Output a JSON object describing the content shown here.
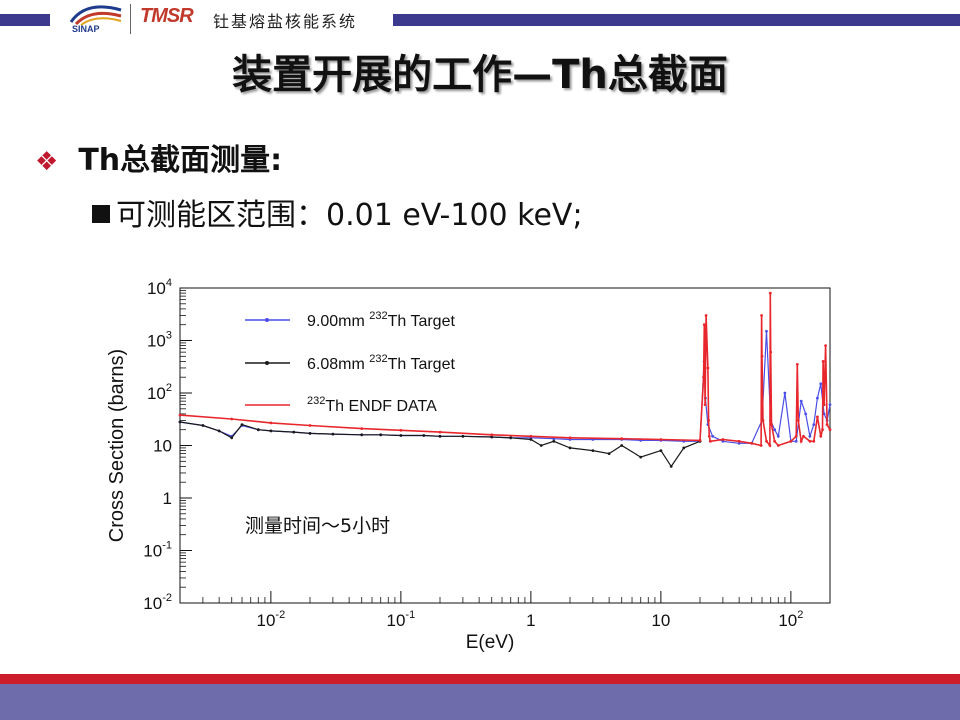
{
  "header": {
    "org_logo_text": "SINAP",
    "brand_logo_text": "TMSR",
    "system_name": "钍基熔盐核能系统",
    "colors": {
      "bar": "#3c3a8f",
      "brand": "#c0392b"
    }
  },
  "slide": {
    "title": "装置开展的工作—Th总截面",
    "bullets": [
      {
        "icon": "diamond-bullet-icon",
        "text": "Th总截面测量:"
      },
      {
        "icon": "square-bullet-icon",
        "text": "可测能区范围：0.01 eV-100 keV;"
      }
    ]
  },
  "chart_data": {
    "type": "line",
    "xlabel": "E(eV)",
    "ylabel": "Cross Section (barns)",
    "xscale": "log",
    "yscale": "log",
    "xlim": [
      0.002,
      200
    ],
    "ylim": [
      0.01,
      10000
    ],
    "x_ticks": [
      {
        "value": 0.01,
        "base": "10",
        "exp": "-2"
      },
      {
        "value": 0.1,
        "base": "10",
        "exp": "-1"
      },
      {
        "value": 1,
        "base": "1",
        "exp": ""
      },
      {
        "value": 10,
        "base": "10",
        "exp": ""
      },
      {
        "value": 100,
        "base": "10",
        "exp": "2"
      }
    ],
    "y_ticks": [
      {
        "value": 0.01,
        "base": "10",
        "exp": "-2"
      },
      {
        "value": 0.1,
        "base": "10",
        "exp": "-1"
      },
      {
        "value": 1,
        "base": "1",
        "exp": ""
      },
      {
        "value": 10,
        "base": "10",
        "exp": ""
      },
      {
        "value": 100,
        "base": "10",
        "exp": "2"
      },
      {
        "value": 1000,
        "base": "10",
        "exp": "3"
      },
      {
        "value": 10000,
        "base": "10",
        "exp": "4"
      }
    ],
    "annotation": "测量时间～5小时",
    "series": [
      {
        "name_pre": "9.00mm ",
        "name_sup": "232",
        "name_post": "Th Target",
        "color": "#4a4ee6",
        "x": [
          0.002,
          0.003,
          0.004,
          0.005,
          0.006,
          0.008,
          0.01,
          0.015,
          0.02,
          0.03,
          0.05,
          0.07,
          0.1,
          0.15,
          0.2,
          0.3,
          0.5,
          0.7,
          1,
          1.5,
          2,
          3,
          5,
          7,
          10,
          15,
          20,
          21.5,
          22,
          23,
          25,
          30,
          40,
          50,
          60,
          65,
          70,
          75,
          80,
          90,
          100,
          110,
          120,
          130,
          140,
          150,
          160,
          170,
          180,
          190,
          200
        ],
        "y": [
          28,
          24,
          19,
          15,
          24,
          20,
          19,
          18,
          17,
          16.5,
          16,
          16,
          15.5,
          15.5,
          15,
          15,
          14.5,
          14,
          14,
          13.5,
          13,
          13,
          13,
          12.5,
          12.5,
          12,
          12,
          400,
          80,
          25,
          15,
          12,
          11,
          11,
          30,
          1500,
          30,
          20,
          15,
          100,
          12,
          12,
          70,
          40,
          15,
          25,
          80,
          150,
          40,
          30,
          60
        ]
      },
      {
        "name_pre": "6.08mm ",
        "name_sup": "232",
        "name_post": "Th Target",
        "color": "#1a1a1a",
        "x": [
          0.002,
          0.003,
          0.004,
          0.005,
          0.006,
          0.008,
          0.01,
          0.015,
          0.02,
          0.03,
          0.05,
          0.07,
          0.1,
          0.15,
          0.2,
          0.3,
          0.5,
          0.7,
          1,
          1.2,
          1.5,
          2,
          3,
          4,
          5,
          7,
          10,
          12,
          15,
          20
        ],
        "y": [
          28,
          24,
          19,
          14,
          25,
          20,
          19,
          18,
          17,
          16.5,
          16,
          16,
          15.5,
          15.5,
          15,
          15,
          14.5,
          14,
          13,
          10,
          12,
          9,
          8,
          7,
          10,
          6,
          8,
          4,
          9,
          12
        ]
      },
      {
        "name_pre": "",
        "name_sup": "232",
        "name_post": "Th ENDF DATA",
        "color": "#e8272d",
        "x": [
          0.002,
          0.005,
          0.01,
          0.02,
          0.05,
          0.1,
          0.2,
          0.5,
          1,
          2,
          5,
          10,
          20,
          21.3,
          21.6,
          21.9,
          22.3,
          23,
          23.3,
          23.6,
          24,
          30,
          40,
          50,
          59,
          59.5,
          60,
          61,
          65,
          69,
          69.5,
          70,
          71,
          75,
          80,
          100,
          110,
          112,
          114,
          120,
          125,
          140,
          150,
          160,
          170,
          175,
          177,
          180,
          185,
          190,
          200
        ],
        "y": [
          38,
          32,
          27,
          24,
          21,
          19.5,
          18,
          16,
          15,
          14,
          13.5,
          13,
          12.5,
          200,
          2000,
          60,
          3000,
          300,
          30,
          15,
          12,
          13,
          12,
          11,
          10,
          3000,
          500,
          30,
          12,
          10,
          8000,
          600,
          25,
          12,
          10,
          12,
          15,
          350,
          30,
          12,
          15,
          12,
          12,
          35,
          15,
          20,
          400,
          60,
          800,
          25,
          20
        ]
      }
    ]
  }
}
